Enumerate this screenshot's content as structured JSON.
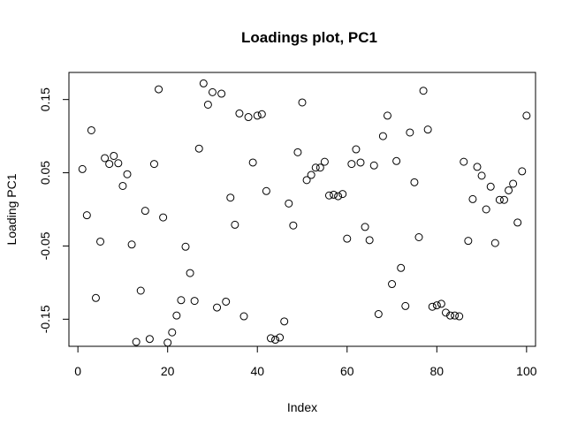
{
  "chart_data": {
    "type": "scatter",
    "title": "Loadings plot, PC1",
    "xlabel": "Index",
    "ylabel": "Loading PC1",
    "xlim": [
      -2,
      102
    ],
    "ylim": [
      -0.187,
      0.187
    ],
    "xticks": [
      0,
      20,
      40,
      60,
      80,
      100
    ],
    "xtick_labels": [
      "0",
      "20",
      "40",
      "60",
      "80",
      "100"
    ],
    "yticks": [
      -0.15,
      -0.05,
      0.05,
      0.15
    ],
    "ytick_labels": [
      "-0.15",
      "-0.05",
      "0.05",
      "0.15"
    ],
    "grid": false,
    "marker": "open-circle",
    "marker_color": "#000000",
    "x": [
      1,
      2,
      3,
      4,
      5,
      6,
      7,
      8,
      9,
      10,
      11,
      12,
      13,
      14,
      15,
      16,
      17,
      18,
      19,
      20,
      21,
      22,
      23,
      24,
      25,
      26,
      27,
      28,
      29,
      30,
      31,
      32,
      33,
      34,
      35,
      36,
      37,
      38,
      39,
      40,
      41,
      42,
      43,
      44,
      45,
      46,
      47,
      48,
      49,
      50,
      51,
      52,
      53,
      54,
      55,
      56,
      57,
      58,
      59,
      60,
      61,
      62,
      63,
      64,
      65,
      66,
      67,
      68,
      69,
      70,
      71,
      72,
      73,
      74,
      75,
      76,
      77,
      78,
      79,
      80,
      81,
      82,
      83,
      84,
      85,
      86,
      87,
      88,
      89,
      90,
      91,
      92,
      93,
      94,
      95,
      96,
      97,
      98,
      99,
      100
    ],
    "y": [
      0.055,
      -0.008,
      0.108,
      -0.121,
      -0.044,
      0.07,
      0.062,
      0.073,
      0.063,
      0.032,
      0.048,
      -0.048,
      -0.181,
      -0.111,
      -0.002,
      -0.177,
      0.062,
      0.164,
      -0.011,
      -0.182,
      -0.168,
      -0.145,
      -0.124,
      -0.051,
      -0.087,
      -0.125,
      0.083,
      0.172,
      0.143,
      0.16,
      -0.134,
      0.158,
      -0.126,
      0.016,
      -0.021,
      0.131,
      -0.146,
      0.126,
      0.064,
      0.128,
      0.13,
      0.025,
      -0.176,
      -0.178,
      -0.175,
      -0.153,
      0.008,
      -0.022,
      0.078,
      0.146,
      0.04,
      0.047,
      0.057,
      0.057,
      0.065,
      0.019,
      0.02,
      0.018,
      0.021,
      -0.04,
      0.062,
      0.082,
      0.064,
      -0.024,
      -0.042,
      0.06,
      -0.143,
      0.1,
      0.128,
      -0.102,
      0.066,
      -0.08,
      -0.132,
      0.105,
      0.037,
      -0.038,
      0.162,
      0.109,
      -0.133,
      -0.131,
      -0.129,
      -0.141,
      -0.145,
      -0.145,
      -0.146,
      0.065,
      -0.043,
      0.014,
      0.058,
      0.046,
      0.0,
      0.031,
      -0.046,
      0.013,
      0.013,
      0.026,
      0.035,
      -0.018,
      0.052,
      0.128
    ]
  }
}
